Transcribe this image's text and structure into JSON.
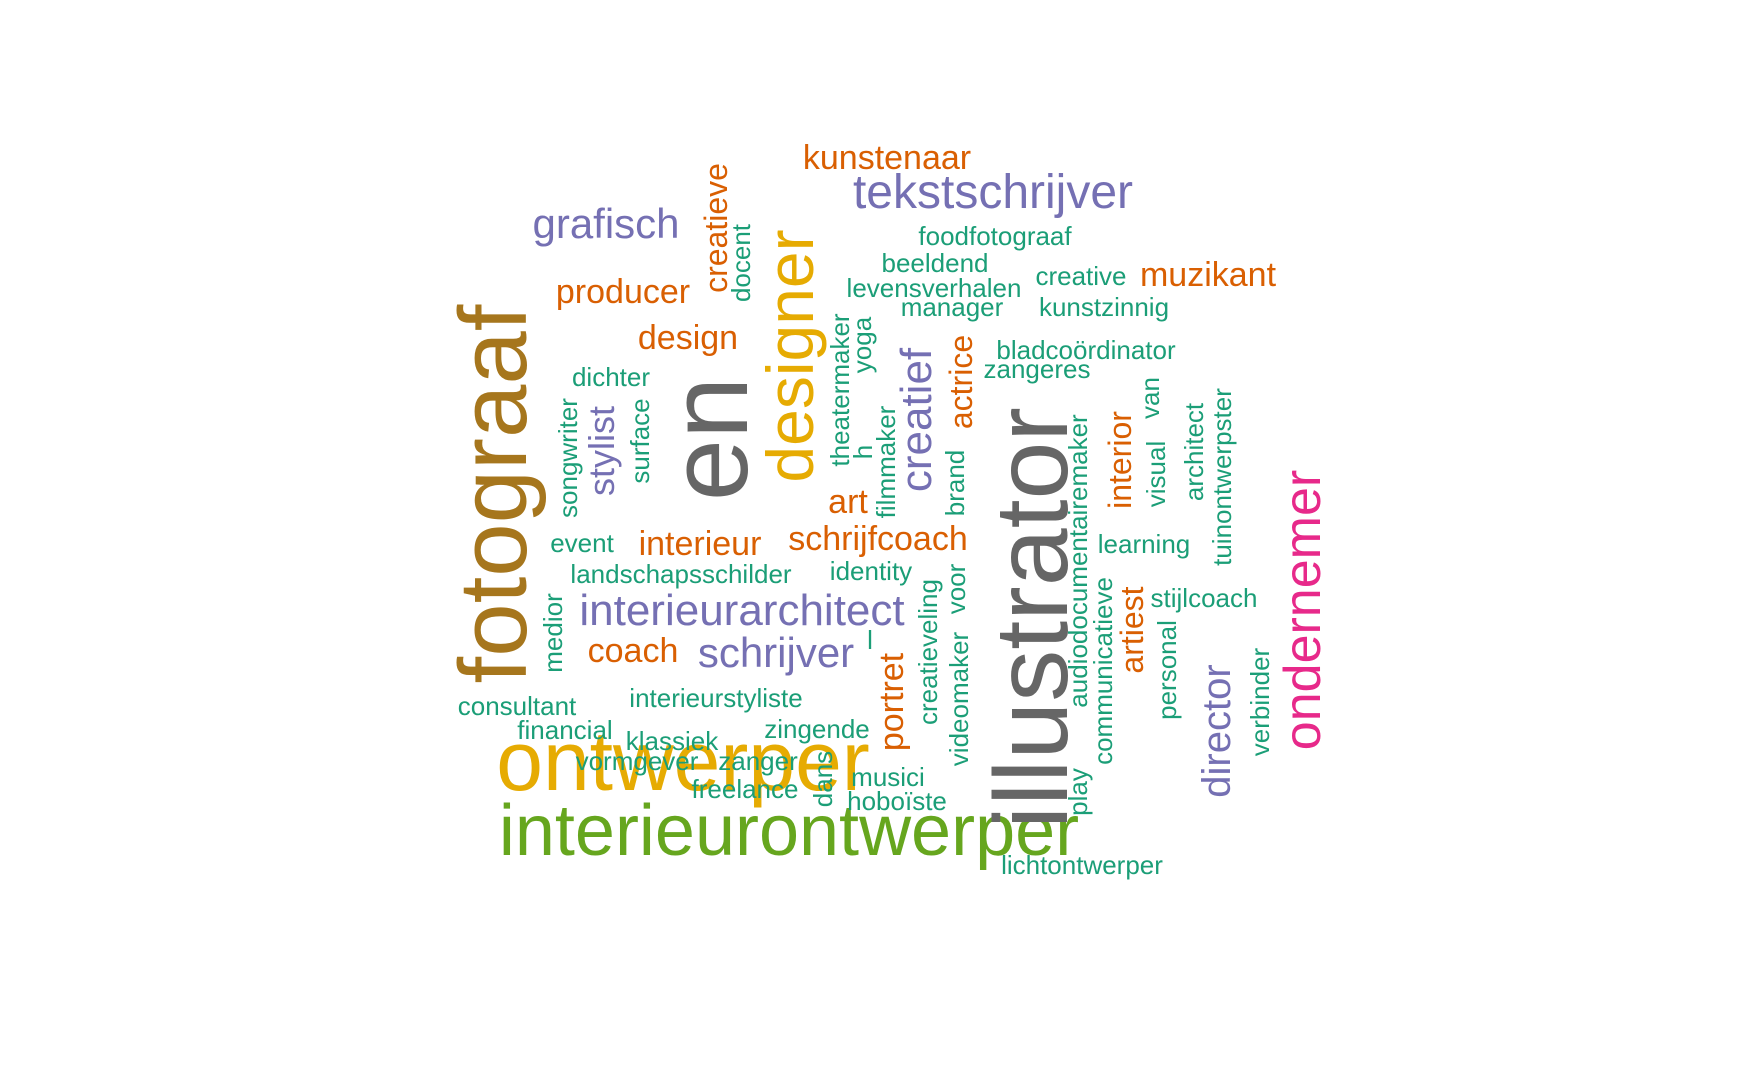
{
  "colors": {
    "background": "#ffffff",
    "teal": "#1b9e77",
    "orange": "#d95f02",
    "purple": "#7570b3",
    "magenta": "#e7298a",
    "green": "#66a61e",
    "gold": "#e6ab02",
    "brown": "#a6761d",
    "gray": "#666666"
  },
  "words": [
    "interieurontwerper",
    "ontwerper",
    "illustrator",
    "en",
    "fotograaf",
    "designer",
    "ondernemer",
    "tekstschrijver",
    "interieurarchitect",
    "schrijver",
    "grafisch",
    "creatief",
    "director",
    "stylist",
    "kunstenaar",
    "muzikant",
    "producer",
    "design",
    "schrijfcoach",
    "interieur",
    "coach",
    "actrice",
    "art",
    "portret",
    "artiest",
    "interior",
    "creatieve",
    "foodfotograaf",
    "beeldend",
    "creative",
    "levensverhalen",
    "manager",
    "kunstzinnig",
    "bladcoördinator",
    "zangeres",
    "dichter",
    "docent",
    "theatermaker",
    "yoga",
    "van",
    "songwriter",
    "surface",
    "architect",
    "tuinontwerpster",
    "visual",
    "brand",
    "filmmaker",
    "h",
    "event",
    "learning",
    "landschapsschilder",
    "identity",
    "audiodocumentairemaker",
    "stijlcoach",
    "medior",
    "creatieveling",
    "voor",
    "communicatieve",
    "personal",
    "l",
    "verbinder",
    "consultant",
    "interieurstyliste",
    "financial",
    "zingende",
    "klassiek",
    "videomaker",
    "play",
    "vormgever",
    "zanger",
    "freelance",
    "dans",
    "musici",
    "hoboïste",
    "lichtontwerper"
  ]
}
